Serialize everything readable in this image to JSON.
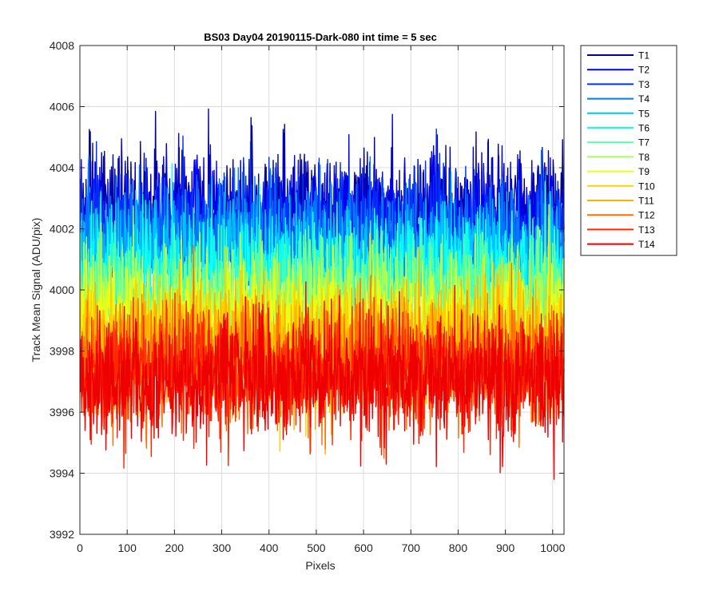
{
  "chart_data": {
    "type": "line",
    "title": "BS03 Day04 20190115-Dark-080 int time = 5 sec",
    "xlabel": "Pixels",
    "ylabel": "Track Mean Signal (ADU/pix)",
    "xlim": [
      0,
      1024
    ],
    "ylim": [
      3992,
      4008
    ],
    "xticks": [
      0,
      100,
      200,
      300,
      400,
      500,
      600,
      700,
      800,
      900,
      1000
    ],
    "yticks": [
      3992,
      3994,
      3996,
      3998,
      4000,
      4002,
      4004,
      4006,
      4008
    ],
    "grid": true,
    "legend_position": "outside-top-right",
    "series": [
      {
        "name": "T1",
        "color": "#00009f",
        "mean": 4002.6,
        "std": 1.0
      },
      {
        "name": "T2",
        "color": "#0000ea",
        "mean": 4002.3,
        "std": 1.0
      },
      {
        "name": "T3",
        "color": "#0030ff",
        "mean": 4001.9,
        "std": 1.0
      },
      {
        "name": "T4",
        "color": "#0079ff",
        "mean": 4001.4,
        "std": 1.0
      },
      {
        "name": "T5",
        "color": "#00c3ff",
        "mean": 4000.9,
        "std": 1.0
      },
      {
        "name": "T6",
        "color": "#0effef",
        "mean": 4000.4,
        "std": 1.0
      },
      {
        "name": "T7",
        "color": "#57ffa6",
        "mean": 3999.9,
        "std": 1.0
      },
      {
        "name": "T8",
        "color": "#a1ff5e",
        "mean": 3999.4,
        "std": 1.0
      },
      {
        "name": "T9",
        "color": "#eaff15",
        "mean": 3998.9,
        "std": 1.0
      },
      {
        "name": "T10",
        "color": "#ffd000",
        "mean": 3998.4,
        "std": 1.0
      },
      {
        "name": "T11",
        "color": "#ffb000",
        "mean": 3998.0,
        "std": 1.0
      },
      {
        "name": "T12",
        "color": "#ff6f00",
        "mean": 3997.6,
        "std": 1.0
      },
      {
        "name": "T13",
        "color": "#ff2600",
        "mean": 3997.3,
        "std": 1.0
      },
      {
        "name": "T14",
        "color": "#ee0000",
        "mean": 3997.1,
        "std": 1.0
      }
    ]
  }
}
